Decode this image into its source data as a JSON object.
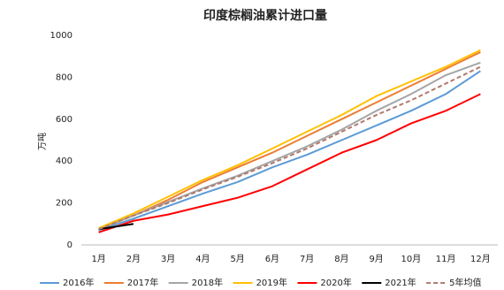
{
  "chart_data": {
    "type": "line",
    "title": "印度棕榈油累计进口量",
    "y_label": "万吨",
    "categories": [
      "1月",
      "2月",
      "3月",
      "4月",
      "5月",
      "6月",
      "7月",
      "8月",
      "9月",
      "10月",
      "11月",
      "12月"
    ],
    "ylim": [
      0,
      1000
    ],
    "yticks": [
      0,
      200,
      400,
      600,
      800,
      1000
    ],
    "grid": false,
    "legend": "bottom",
    "series": [
      {
        "name": "2016年",
        "color": "#5b9bd5",
        "values": [
          70,
          125,
          185,
          245,
          300,
          370,
          430,
          500,
          570,
          640,
          720,
          830
        ]
      },
      {
        "name": "2017年",
        "color": "#ed7d31",
        "values": [
          75,
          140,
          215,
          300,
          370,
          440,
          520,
          600,
          680,
          760,
          840,
          920
        ]
      },
      {
        "name": "2018年",
        "color": "#a5a5a5",
        "values": [
          80,
          140,
          205,
          270,
          330,
          400,
          470,
          550,
          640,
          720,
          810,
          870
        ]
      },
      {
        "name": "2019年",
        "color": "#ffc000",
        "values": [
          80,
          150,
          230,
          310,
          380,
          460,
          540,
          620,
          710,
          780,
          850,
          930
        ]
      },
      {
        "name": "2020年",
        "color": "#ff0000",
        "values": [
          60,
          115,
          145,
          185,
          225,
          280,
          360,
          440,
          500,
          580,
          640,
          720
        ]
      },
      {
        "name": "2021年",
        "color": "#000000",
        "values": [
          75,
          100,
          null,
          null,
          null,
          null,
          null,
          null,
          null,
          null,
          null,
          null
        ]
      },
      {
        "name": "5年均值",
        "color": "#b07a6e",
        "dash": true,
        "values": [
          75,
          140,
          200,
          265,
          325,
          390,
          460,
          540,
          620,
          690,
          770,
          850
        ]
      }
    ]
  }
}
